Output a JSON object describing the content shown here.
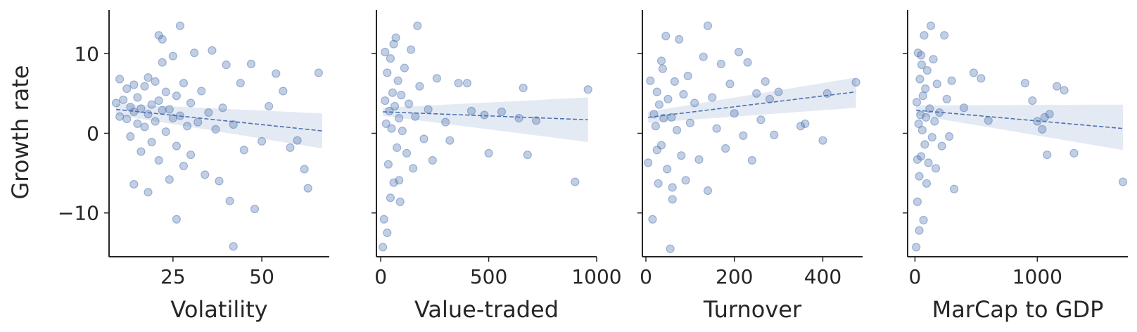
{
  "chart_data": {
    "type": "scatter",
    "ylabel": "Growth rate",
    "ylim": [
      -15.5,
      15.5
    ],
    "yticks": [
      -10,
      0,
      10
    ],
    "ytick_labels": [
      "−10",
      "0",
      "10"
    ],
    "point_color": "#4c72b0",
    "panels": [
      {
        "xlabel": "Volatility",
        "xlim": [
          7,
          69
        ],
        "xticks": [
          25,
          50
        ],
        "trend": {
          "x": [
            9,
            67
          ],
          "y": [
            3.0,
            0.3
          ],
          "band_lower": [
            2.3,
            -1.9
          ],
          "band_upper": [
            3.7,
            2.5
          ]
        },
        "points": [
          [
            9,
            3.8
          ],
          [
            10,
            2.1
          ],
          [
            11,
            4.2
          ],
          [
            12,
            1.8
          ],
          [
            12,
            5.6
          ],
          [
            13,
            3.3
          ],
          [
            13,
            -0.4
          ],
          [
            14,
            2.7
          ],
          [
            14,
            6.1
          ],
          [
            15,
            1.2
          ],
          [
            15,
            4.5
          ],
          [
            16,
            -2.3
          ],
          [
            16,
            3.1
          ],
          [
            17,
            5.9
          ],
          [
            17,
            0.8
          ],
          [
            18,
            2.4
          ],
          [
            18,
            7.0
          ],
          [
            19,
            -1.1
          ],
          [
            19,
            3.6
          ],
          [
            20,
            1.5
          ],
          [
            20,
            6.5
          ],
          [
            21,
            -3.4
          ],
          [
            21,
            4.1
          ],
          [
            22,
            2.9
          ],
          [
            22,
            8.9
          ],
          [
            23,
            0.2
          ],
          [
            23,
            5.2
          ],
          [
            24,
            -5.8
          ],
          [
            24,
            3.0
          ],
          [
            25,
            1.9
          ],
          [
            25,
            9.7
          ],
          [
            26,
            -1.6
          ],
          [
            26,
            4.7
          ],
          [
            27,
            2.2
          ],
          [
            27,
            13.5
          ],
          [
            28,
            -4.1
          ],
          [
            28,
            6.3
          ],
          [
            29,
            0.9
          ],
          [
            30,
            3.8
          ],
          [
            30,
            -2.7
          ],
          [
            31,
            10.1
          ],
          [
            32,
            1.4
          ],
          [
            33,
            5.3
          ],
          [
            34,
            -5.2
          ],
          [
            35,
            2.6
          ],
          [
            36,
            10.4
          ],
          [
            37,
            0.5
          ],
          [
            38,
            -6.0
          ],
          [
            39,
            3.2
          ],
          [
            40,
            8.6
          ],
          [
            41,
            -8.5
          ],
          [
            42,
            1.1
          ],
          [
            42,
            -14.2
          ],
          [
            44,
            6.3
          ],
          [
            45,
            -2.1
          ],
          [
            47,
            8.7
          ],
          [
            48,
            -9.5
          ],
          [
            50,
            -1.0
          ],
          [
            52,
            3.4
          ],
          [
            54,
            7.5
          ],
          [
            56,
            5.3
          ],
          [
            58,
            -1.8
          ],
          [
            60,
            -0.9
          ],
          [
            62,
            -4.5
          ],
          [
            63,
            -6.9
          ],
          [
            66,
            7.6
          ],
          [
            18,
            -7.4
          ],
          [
            22,
            11.8
          ],
          [
            21,
            12.3
          ],
          [
            26,
            -10.8
          ],
          [
            14,
            -6.4
          ],
          [
            10,
            6.8
          ]
        ]
      },
      {
        "xlabel": "Value-traded",
        "xlim": [
          -20,
          1000
        ],
        "xticks": [
          0,
          500,
          1000
        ],
        "trend": {
          "x": [
            10,
            960
          ],
          "y": [
            2.7,
            1.7
          ],
          "band_lower": [
            2.2,
            -1.1
          ],
          "band_upper": [
            3.2,
            4.5
          ]
        },
        "points": [
          [
            10,
            -14.3
          ],
          [
            15,
            -10.8
          ],
          [
            20,
            4.1
          ],
          [
            25,
            1.2
          ],
          [
            30,
            7.6
          ],
          [
            35,
            -3.9
          ],
          [
            40,
            2.8
          ],
          [
            45,
            9.4
          ],
          [
            50,
            0.6
          ],
          [
            55,
            5.1
          ],
          [
            60,
            -6.2
          ],
          [
            65,
            3.4
          ],
          [
            70,
            12.0
          ],
          [
            75,
            -1.8
          ],
          [
            80,
            6.6
          ],
          [
            85,
            1.9
          ],
          [
            90,
            -8.6
          ],
          [
            95,
            4.8
          ],
          [
            100,
            0.3
          ],
          [
            110,
            8.2
          ],
          [
            120,
            -2.5
          ],
          [
            130,
            3.7
          ],
          [
            140,
            10.5
          ],
          [
            150,
            -4.4
          ],
          [
            160,
            2.1
          ],
          [
            170,
            13.5
          ],
          [
            180,
            5.9
          ],
          [
            200,
            -0.7
          ],
          [
            220,
            3.0
          ],
          [
            240,
            -3.4
          ],
          [
            260,
            6.9
          ],
          [
            300,
            1.4
          ],
          [
            320,
            -0.9
          ],
          [
            360,
            6.3
          ],
          [
            400,
            6.3
          ],
          [
            420,
            2.8
          ],
          [
            480,
            2.3
          ],
          [
            500,
            -2.5
          ],
          [
            560,
            2.7
          ],
          [
            640,
            1.9
          ],
          [
            660,
            5.7
          ],
          [
            680,
            -2.7
          ],
          [
            720,
            1.6
          ],
          [
            900,
            -6.1
          ],
          [
            960,
            5.5
          ],
          [
            20,
            10.2
          ],
          [
            30,
            -12.5
          ],
          [
            60,
            11.2
          ],
          [
            45,
            -8.1
          ],
          [
            85,
            -5.9
          ]
        ]
      },
      {
        "xlabel": "Turnover",
        "xlim": [
          -8,
          490
        ],
        "xticks": [
          0,
          200,
          400
        ],
        "trend": {
          "x": [
            5,
            475
          ],
          "y": [
            2.0,
            5.2
          ],
          "band_lower": [
            1.3,
            3.2
          ],
          "band_upper": [
            2.7,
            7.0
          ]
        },
        "points": [
          [
            5,
            -3.7
          ],
          [
            10,
            6.6
          ],
          [
            15,
            -10.8
          ],
          [
            18,
            2.4
          ],
          [
            22,
            0.9
          ],
          [
            25,
            5.2
          ],
          [
            28,
            -6.3
          ],
          [
            30,
            3.6
          ],
          [
            35,
            -1.5
          ],
          [
            38,
            8.1
          ],
          [
            40,
            1.9
          ],
          [
            45,
            12.2
          ],
          [
            48,
            -4.5
          ],
          [
            50,
            4.3
          ],
          [
            55,
            -14.5
          ],
          [
            58,
            2.0
          ],
          [
            60,
            -8.3
          ],
          [
            65,
            6.5
          ],
          [
            70,
            0.4
          ],
          [
            75,
            11.8
          ],
          [
            80,
            -2.8
          ],
          [
            85,
            4.9
          ],
          [
            90,
            -5.9
          ],
          [
            95,
            7.2
          ],
          [
            100,
            1.3
          ],
          [
            110,
            3.8
          ],
          [
            120,
            -3.3
          ],
          [
            130,
            9.6
          ],
          [
            140,
            -7.2
          ],
          [
            140,
            13.5
          ],
          [
            150,
            4.5
          ],
          [
            160,
            0.6
          ],
          [
            170,
            8.7
          ],
          [
            180,
            -1.9
          ],
          [
            190,
            6.2
          ],
          [
            200,
            2.5
          ],
          [
            210,
            10.2
          ],
          [
            220,
            -0.3
          ],
          [
            230,
            8.9
          ],
          [
            240,
            -3.4
          ],
          [
            250,
            5.0
          ],
          [
            260,
            1.7
          ],
          [
            270,
            6.5
          ],
          [
            280,
            4.3
          ],
          [
            290,
            -0.2
          ],
          [
            300,
            5.2
          ],
          [
            350,
            0.9
          ],
          [
            360,
            1.2
          ],
          [
            400,
            -0.9
          ],
          [
            410,
            5.0
          ],
          [
            475,
            6.4
          ],
          [
            25,
            -2.1
          ],
          [
            35,
            9.1
          ],
          [
            60,
            -6.8
          ]
        ]
      },
      {
        "xlabel": "MarCap to GDP",
        "xlim": [
          -60,
          1740
        ],
        "xticks": [
          0,
          1000
        ],
        "trend": {
          "x": [
            10,
            1700
          ],
          "y": [
            2.9,
            0.6
          ],
          "band_lower": [
            2.3,
            -2.1
          ],
          "band_upper": [
            3.5,
            3.6
          ]
        },
        "points": [
          [
            10,
            -14.3
          ],
          [
            15,
            3.9
          ],
          [
            20,
            -8.6
          ],
          [
            25,
            10.1
          ],
          [
            30,
            1.2
          ],
          [
            35,
            -5.4
          ],
          [
            40,
            6.8
          ],
          [
            45,
            2.3
          ],
          [
            50,
            -2.9
          ],
          [
            55,
            8.6
          ],
          [
            60,
            0.4
          ],
          [
            65,
            4.7
          ],
          [
            70,
            -10.9
          ],
          [
            75,
            12.3
          ],
          [
            80,
            -1.4
          ],
          [
            85,
            5.6
          ],
          [
            90,
            2.0
          ],
          [
            95,
            -6.3
          ],
          [
            100,
            7.9
          ],
          [
            110,
            -3.7
          ],
          [
            120,
            3.1
          ],
          [
            130,
            13.5
          ],
          [
            140,
            -0.5
          ],
          [
            150,
            9.3
          ],
          [
            160,
            1.5
          ],
          [
            170,
            -4.4
          ],
          [
            180,
            6.2
          ],
          [
            200,
            2.6
          ],
          [
            220,
            -1.6
          ],
          [
            240,
            12.3
          ],
          [
            260,
            4.3
          ],
          [
            280,
            -0.4
          ],
          [
            300,
            6.6
          ],
          [
            320,
            -7.0
          ],
          [
            400,
            3.2
          ],
          [
            480,
            7.6
          ],
          [
            540,
            6.9
          ],
          [
            600,
            1.6
          ],
          [
            900,
            6.3
          ],
          [
            960,
            4.1
          ],
          [
            1000,
            1.5
          ],
          [
            1040,
            0.5
          ],
          [
            1060,
            2.0
          ],
          [
            1080,
            -2.7
          ],
          [
            1100,
            2.4
          ],
          [
            1160,
            5.9
          ],
          [
            1220,
            5.4
          ],
          [
            1300,
            -2.5
          ],
          [
            1700,
            -6.1
          ],
          [
            20,
            -3.3
          ],
          [
            35,
            -12.2
          ],
          [
            50,
            9.8
          ]
        ]
      }
    ]
  }
}
